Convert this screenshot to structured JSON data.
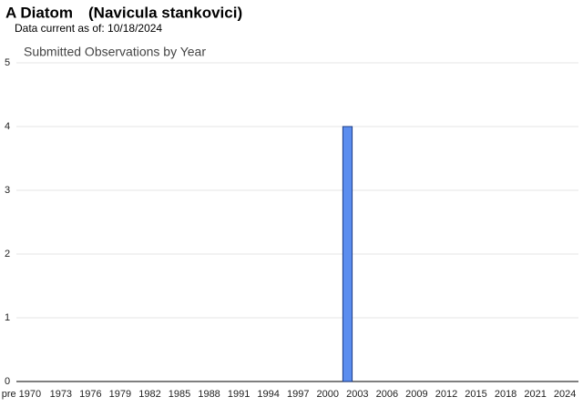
{
  "title": "A Diatom",
  "scientific_name": "(Navicula stankovici)",
  "subtitle": "Data current as of: 10/18/2024",
  "chart_data": {
    "type": "bar",
    "title": "Submitted Observations by Year",
    "categories": [
      "pre 1970",
      null,
      null,
      null,
      "1973",
      null,
      null,
      "1976",
      null,
      null,
      "1979",
      null,
      null,
      "1982",
      null,
      null,
      "1985",
      null,
      null,
      "1988",
      null,
      null,
      "1991",
      null,
      null,
      "1994",
      null,
      null,
      "1997",
      null,
      null,
      "2000",
      null,
      null,
      "2003",
      null,
      null,
      "2006",
      null,
      null,
      "2009",
      null,
      null,
      "2012",
      null,
      null,
      "2015",
      null,
      null,
      "2018",
      null,
      null,
      "2021",
      null,
      null,
      "2024"
    ],
    "values": [
      0,
      0,
      0,
      0,
      0,
      0,
      0,
      0,
      0,
      0,
      0,
      0,
      0,
      0,
      0,
      0,
      0,
      0,
      0,
      0,
      0,
      0,
      0,
      0,
      0,
      0,
      0,
      0,
      0,
      0,
      0,
      0,
      0,
      4,
      0,
      0,
      0,
      0,
      0,
      0,
      0,
      0,
      0,
      0,
      0,
      0,
      0,
      0,
      0,
      0,
      0,
      0,
      0,
      0,
      0,
      0
    ],
    "color": "#5b8def",
    "ylim": [
      0,
      5
    ],
    "yticks": [
      0,
      1,
      2,
      3,
      4,
      5
    ],
    "grid": true
  }
}
